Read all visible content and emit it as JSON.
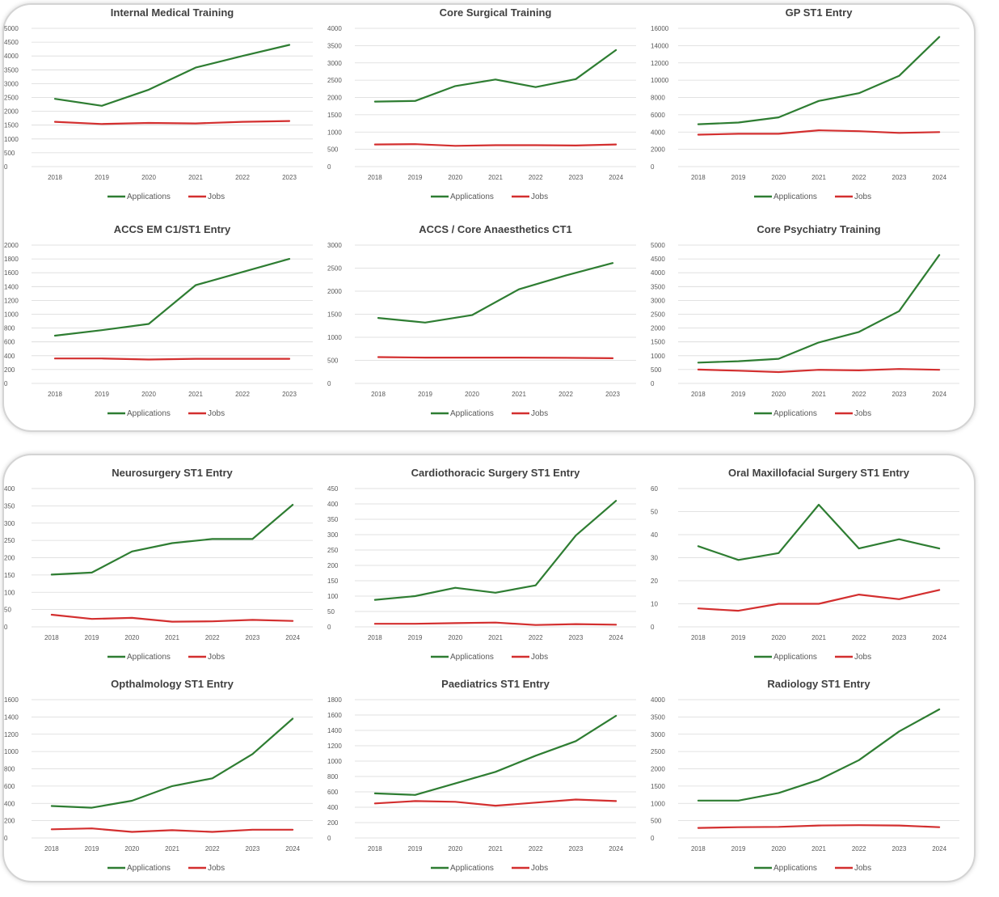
{
  "colors": {
    "applications": "#2e7d32",
    "jobs": "#d32f2f",
    "grid": "#d9d9d9",
    "text": "#595959"
  },
  "legend": {
    "applications_label": "Applications",
    "jobs_label": "Jobs",
    "placement": "bottom"
  },
  "chart_data": [
    {
      "id": "imt",
      "type": "line",
      "title": "Internal Medical Training",
      "x": [
        "2018",
        "2019",
        "2020",
        "2021",
        "2022",
        "2023"
      ],
      "yticks": [
        "0",
        "500",
        "1000",
        "1500",
        "2000",
        "2500",
        "3000",
        "3500",
        "4000",
        "4500",
        "5000"
      ],
      "ylim": [
        0,
        5000
      ],
      "series": [
        {
          "name": "Applications",
          "values": [
            2450,
            2200,
            2780,
            3580,
            4000,
            4400
          ]
        },
        {
          "name": "Jobs",
          "values": [
            1620,
            1540,
            1580,
            1560,
            1620,
            1650
          ]
        }
      ]
    },
    {
      "id": "cst",
      "type": "line",
      "title": "Core Surgical Training",
      "x": [
        "2018",
        "2019",
        "2020",
        "2021",
        "2022",
        "2023",
        "2024"
      ],
      "yticks": [
        "0",
        "500",
        "1000",
        "1500",
        "2000",
        "2500",
        "3000",
        "3500",
        "4000"
      ],
      "ylim": [
        0,
        4000
      ],
      "series": [
        {
          "name": "Applications",
          "values": [
            1880,
            1900,
            2330,
            2520,
            2300,
            2530,
            3370
          ]
        },
        {
          "name": "Jobs",
          "values": [
            640,
            650,
            600,
            620,
            620,
            610,
            640
          ]
        }
      ]
    },
    {
      "id": "gp",
      "type": "line",
      "title": "GP ST1 Entry",
      "x": [
        "2018",
        "2019",
        "2020",
        "2021",
        "2022",
        "2023",
        "2024"
      ],
      "yticks": [
        "0",
        "2000",
        "4000",
        "6000",
        "8000",
        "10000",
        "12000",
        "14000",
        "16000"
      ],
      "ylim": [
        0,
        16000
      ],
      "series": [
        {
          "name": "Applications",
          "values": [
            4900,
            5100,
            5700,
            7600,
            8500,
            10500,
            15000
          ]
        },
        {
          "name": "Jobs",
          "values": [
            3700,
            3800,
            3800,
            4200,
            4100,
            3900,
            4000
          ]
        }
      ]
    },
    {
      "id": "accs-em",
      "type": "line",
      "title": "ACCS EM C1/ST1 Entry",
      "x": [
        "2018",
        "2019",
        "2020",
        "2021",
        "2022",
        "2023"
      ],
      "yticks": [
        "0",
        "200",
        "400",
        "600",
        "800",
        "1000",
        "1200",
        "1400",
        "1600",
        "1800",
        "2000"
      ],
      "ylim": [
        0,
        2000
      ],
      "series": [
        {
          "name": "Applications",
          "values": [
            690,
            770,
            860,
            1420,
            1610,
            1800
          ]
        },
        {
          "name": "Jobs",
          "values": [
            360,
            360,
            345,
            355,
            355,
            355
          ]
        }
      ]
    },
    {
      "id": "accs-anaes",
      "type": "line",
      "title": "ACCS / Core Anaesthetics CT1",
      "x": [
        "2018",
        "2019",
        "2020",
        "2021",
        "2022",
        "2023"
      ],
      "yticks": [
        "0",
        "500",
        "1000",
        "1500",
        "2000",
        "2500",
        "3000"
      ],
      "ylim": [
        0,
        3000
      ],
      "series": [
        {
          "name": "Applications",
          "values": [
            1420,
            1320,
            1480,
            2040,
            2340,
            2610
          ]
        },
        {
          "name": "Jobs",
          "values": [
            570,
            560,
            560,
            560,
            555,
            545
          ]
        }
      ]
    },
    {
      "id": "psych",
      "type": "line",
      "title": "Core Psychiatry Training",
      "x": [
        "2018",
        "2019",
        "2020",
        "2021",
        "2022",
        "2023",
        "2024"
      ],
      "yticks": [
        "0",
        "500",
        "1000",
        "1500",
        "2000",
        "2500",
        "3000",
        "3500",
        "4000",
        "4500",
        "5000"
      ],
      "ylim": [
        0,
        5000
      ],
      "series": [
        {
          "name": "Applications",
          "values": [
            750,
            800,
            890,
            1480,
            1860,
            2610,
            4640
          ]
        },
        {
          "name": "Jobs",
          "values": [
            500,
            460,
            410,
            490,
            470,
            520,
            490
          ]
        }
      ]
    },
    {
      "id": "neuro",
      "type": "line",
      "title": "Neurosurgery ST1 Entry",
      "x": [
        "2018",
        "2019",
        "2020",
        "2021",
        "2022",
        "2023",
        "2024"
      ],
      "yticks": [
        "0",
        "50",
        "100",
        "150",
        "200",
        "250",
        "300",
        "350",
        "400"
      ],
      "ylim": [
        0,
        400
      ],
      "series": [
        {
          "name": "Applications",
          "values": [
            151,
            157,
            218,
            242,
            254,
            254,
            353
          ]
        },
        {
          "name": "Jobs",
          "values": [
            35,
            23,
            26,
            15,
            16,
            20,
            17
          ]
        }
      ]
    },
    {
      "id": "cardio",
      "type": "line",
      "title": "Cardiothoracic Surgery ST1 Entry",
      "x": [
        "2018",
        "2019",
        "2020",
        "2021",
        "2022",
        "2023",
        "2024"
      ],
      "yticks": [
        "0",
        "50",
        "100",
        "150",
        "200",
        "250",
        "300",
        "350",
        "400",
        "450"
      ],
      "ylim": [
        0,
        450
      ],
      "series": [
        {
          "name": "Applications",
          "values": [
            88,
            100,
            127,
            111,
            135,
            297,
            410
          ]
        },
        {
          "name": "Jobs",
          "values": [
            10,
            10,
            12,
            14,
            6,
            9,
            7
          ]
        }
      ]
    },
    {
      "id": "omfs",
      "type": "line",
      "title": "Oral Maxillofacial Surgery ST1 Entry",
      "x": [
        "2018",
        "2019",
        "2020",
        "2021",
        "2022",
        "2023",
        "2024"
      ],
      "yticks": [
        "0",
        "10",
        "20",
        "30",
        "40",
        "50",
        "60"
      ],
      "ylim": [
        0,
        60
      ],
      "series": [
        {
          "name": "Applications",
          "values": [
            35,
            29,
            32,
            53,
            34,
            38,
            34
          ]
        },
        {
          "name": "Jobs",
          "values": [
            8,
            7,
            10,
            10,
            14,
            12,
            16
          ]
        }
      ]
    },
    {
      "id": "ophth",
      "type": "line",
      "title": "Opthalmology ST1 Entry",
      "x": [
        "2018",
        "2019",
        "2020",
        "2021",
        "2022",
        "2023",
        "2024"
      ],
      "yticks": [
        "0",
        "200",
        "400",
        "600",
        "800",
        "1000",
        "1200",
        "1400",
        "1600"
      ],
      "ylim": [
        0,
        1600
      ],
      "series": [
        {
          "name": "Applications",
          "values": [
            370,
            350,
            430,
            600,
            690,
            970,
            1380
          ]
        },
        {
          "name": "Jobs",
          "values": [
            100,
            110,
            70,
            90,
            70,
            95,
            95
          ]
        }
      ]
    },
    {
      "id": "paeds",
      "type": "line",
      "title": "Paediatrics ST1 Entry",
      "x": [
        "2018",
        "2019",
        "2020",
        "2021",
        "2022",
        "2023",
        "2024"
      ],
      "yticks": [
        "0",
        "200",
        "400",
        "600",
        "800",
        "1000",
        "1200",
        "1400",
        "1600",
        "1800"
      ],
      "ylim": [
        0,
        1800
      ],
      "series": [
        {
          "name": "Applications",
          "values": [
            580,
            560,
            710,
            860,
            1070,
            1260,
            1590
          ]
        },
        {
          "name": "Jobs",
          "values": [
            450,
            480,
            470,
            420,
            460,
            500,
            480
          ]
        }
      ]
    },
    {
      "id": "radiology",
      "type": "line",
      "title": "Radiology ST1 Entry",
      "x": [
        "2018",
        "2019",
        "2020",
        "2021",
        "2022",
        "2023",
        "2024"
      ],
      "yticks": [
        "0",
        "500",
        "1000",
        "1500",
        "2000",
        "2500",
        "3000",
        "3500",
        "4000"
      ],
      "ylim": [
        0,
        4000
      ],
      "series": [
        {
          "name": "Applications",
          "values": [
            1080,
            1080,
            1300,
            1680,
            2250,
            3080,
            3720
          ]
        },
        {
          "name": "Jobs",
          "values": [
            290,
            310,
            320,
            360,
            370,
            360,
            310
          ]
        }
      ]
    }
  ]
}
